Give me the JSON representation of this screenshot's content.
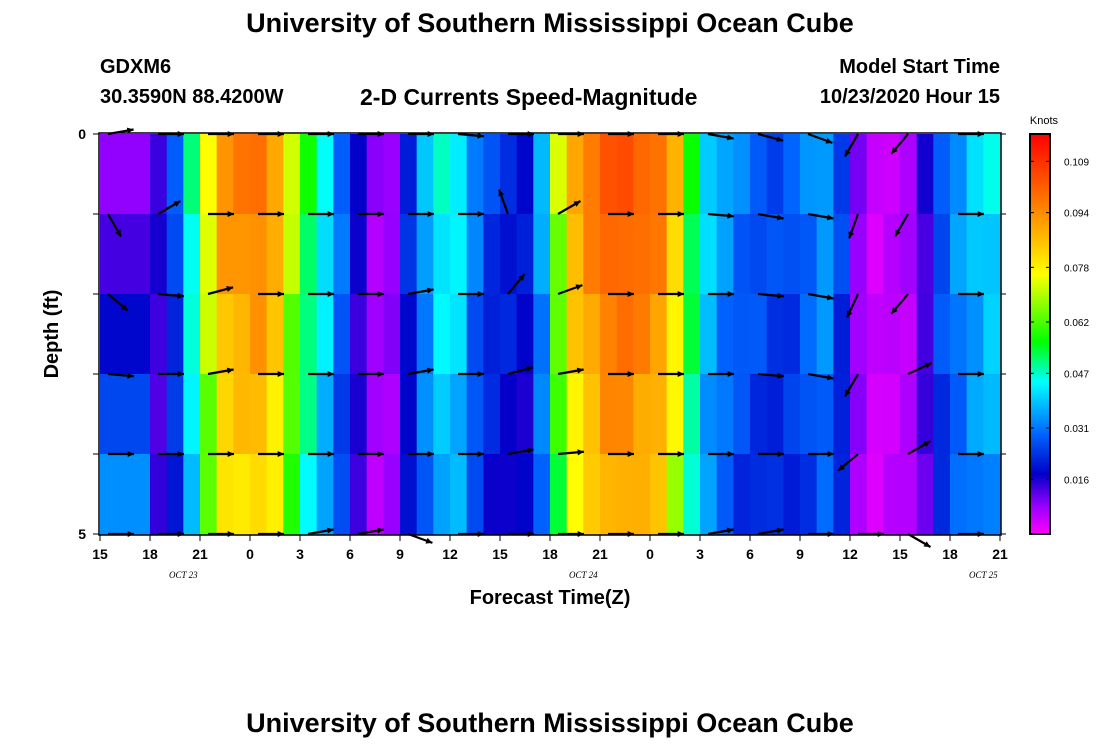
{
  "header": {
    "title": "University of Southern Mississippi Ocean Cube",
    "station_id": "GDXM6",
    "coords": "30.3590N 88.4200W",
    "chart_title": "2-D Currents Speed-Magnitude",
    "model_label": "Model Start Time",
    "model_time": "10/23/2020 Hour 15"
  },
  "footer": {
    "title": "University of Southern Mississippi Ocean Cube"
  },
  "chart_data": {
    "type": "heatmap",
    "title": "2-D Currents Speed-Magnitude",
    "xlabel": "Forecast Time(Z)",
    "ylabel": "Depth (ft)",
    "ylim": [
      0,
      5
    ],
    "y_tick_labels": [
      "0",
      "5"
    ],
    "x_tick_labels": [
      "15",
      "18",
      "21",
      "0",
      "3",
      "6",
      "9",
      "12",
      "15",
      "18",
      "21",
      "0",
      "3",
      "6",
      "9",
      "12",
      "15",
      "18",
      "21"
    ],
    "date_labels": [
      {
        "text": "OCT 23",
        "hour": 5
      },
      {
        "text": "OCT 24",
        "hour": 29
      },
      {
        "text": "OCT 25",
        "hour": 53
      }
    ],
    "hours": 54,
    "depth_levels": 5,
    "colorbar": {
      "title": "Knots",
      "min": 0.0,
      "max": 0.117,
      "tick_values": [
        0.109,
        0.094,
        0.078,
        0.062,
        0.047,
        0.031,
        0.016
      ],
      "tick_labels": [
        "0.109",
        "0.094",
        "0.078",
        "0.062",
        "0.047",
        "0.031",
        "0.016"
      ]
    },
    "speed_profile_knots": [
      {
        "hour": 0,
        "value": 0.012
      },
      {
        "hour": 4,
        "value": 0.022
      },
      {
        "hour": 6,
        "value": 0.058
      },
      {
        "hour": 7,
        "value": 0.085
      },
      {
        "hour": 10,
        "value": 0.092
      },
      {
        "hour": 12,
        "value": 0.06
      },
      {
        "hour": 14,
        "value": 0.04
      },
      {
        "hour": 17,
        "value": 0.005
      },
      {
        "hour": 19,
        "value": 0.035
      },
      {
        "hour": 21,
        "value": 0.05
      },
      {
        "hour": 23,
        "value": 0.03
      },
      {
        "hour": 26,
        "value": 0.025
      },
      {
        "hour": 28,
        "value": 0.08
      },
      {
        "hour": 31,
        "value": 0.1
      },
      {
        "hour": 34,
        "value": 0.09
      },
      {
        "hour": 36,
        "value": 0.045
      },
      {
        "hour": 38,
        "value": 0.035
      },
      {
        "hour": 41,
        "value": 0.03
      },
      {
        "hour": 44,
        "value": 0.04
      },
      {
        "hour": 45,
        "value": 0.02
      },
      {
        "hour": 46,
        "value": 0.005
      },
      {
        "hour": 49,
        "value": 0.01
      },
      {
        "hour": 50,
        "value": 0.03
      },
      {
        "hour": 52,
        "value": 0.04
      },
      {
        "hour": 54,
        "value": 0.045
      }
    ],
    "arrow_hours": [
      0,
      3,
      6,
      9,
      12,
      15,
      18,
      21,
      24,
      27,
      30,
      33,
      36,
      39,
      42,
      45,
      48,
      51
    ],
    "arrow_depths": [
      0,
      1,
      2,
      3,
      4,
      5
    ],
    "arrow_angles_deg": [
      [
        -10,
        0,
        0,
        0,
        0,
        0,
        0,
        5,
        0,
        0,
        0,
        0,
        10,
        15,
        20,
        120,
        130,
        0
      ],
      [
        60,
        -30,
        0,
        0,
        0,
        0,
        0,
        0,
        -110,
        -30,
        0,
        0,
        5,
        10,
        10,
        110,
        120,
        0
      ],
      [
        40,
        5,
        -15,
        0,
        0,
        0,
        -10,
        0,
        -50,
        -20,
        0,
        0,
        0,
        5,
        10,
        115,
        130,
        0
      ],
      [
        5,
        0,
        -10,
        0,
        0,
        0,
        -10,
        0,
        -15,
        -10,
        0,
        0,
        0,
        5,
        10,
        120,
        -25,
        0
      ],
      [
        0,
        0,
        0,
        0,
        0,
        0,
        0,
        0,
        -10,
        -5,
        0,
        0,
        0,
        0,
        0,
        140,
        -30,
        0
      ],
      [
        0,
        0,
        0,
        0,
        -10,
        -10,
        20,
        0,
        0,
        0,
        0,
        0,
        -10,
        -10,
        0,
        0,
        30,
        0
      ]
    ]
  }
}
